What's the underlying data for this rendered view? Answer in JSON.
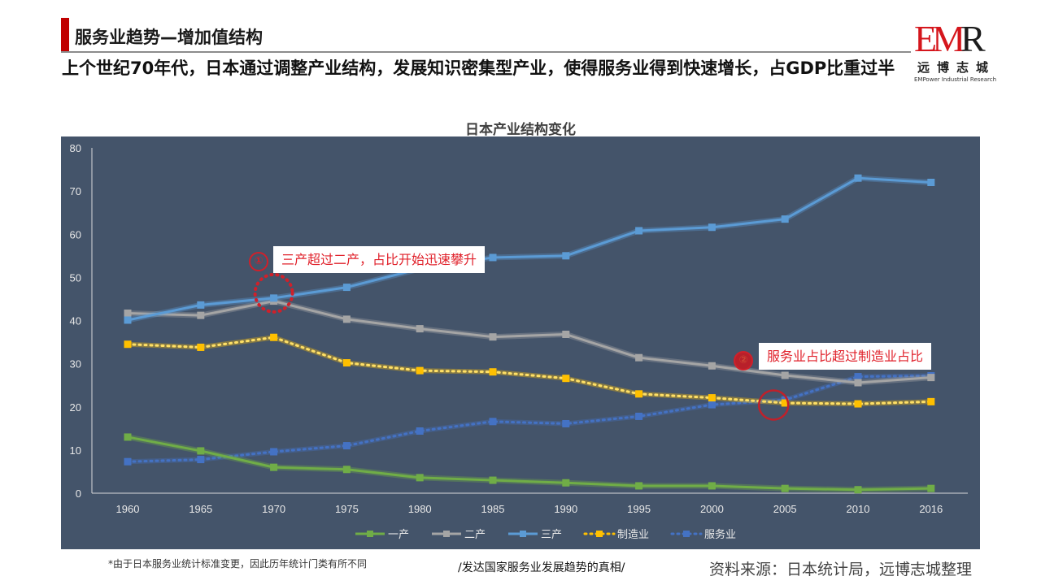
{
  "header": {
    "title": "服务业趋势—增加值结构",
    "subtitle": "上个世纪70年代，日本通过调整产业结构，发展知识密集型产业，使得服务业得到快速增长，占GDP比重过半"
  },
  "logo": {
    "mark_red": "EM",
    "mark_dark": "R",
    "cn": "远博志城",
    "en": "EMPower Industrial Research"
  },
  "annotations": [
    {
      "badge": "①",
      "text": "三产超过二产，占比开始迅速攀升",
      "year": 1970,
      "style": "dotted-circle"
    },
    {
      "badge": "②",
      "text": "服务业占比超过制造业占比",
      "year": 2005,
      "style": "solid-circle"
    }
  ],
  "footer": {
    "note": "*由于日本服务业统计标准变更，因此历年统计门类有所不同",
    "series_title": "/发达国家服务业发展趋势的真相/",
    "source": "资料来源：日本统计局，远博志城整理"
  },
  "colors": {
    "panel_bg": "#44546a",
    "accent_red": "#c00000"
  },
  "chart_data": {
    "type": "line",
    "title": "日本产业结构变化",
    "xlabel": "",
    "ylabel": "",
    "ylim": [
      0,
      80
    ],
    "yticks": [
      0,
      10,
      20,
      30,
      40,
      50,
      60,
      70,
      80
    ],
    "grid": false,
    "legend": "bottom",
    "categories": [
      "1960",
      "1965",
      "1970",
      "1975",
      "1980",
      "1985",
      "1990",
      "1995",
      "2000",
      "2005",
      "2010",
      "2016"
    ],
    "series": [
      {
        "name": "一产",
        "color": "#70ad47",
        "dash": "solid",
        "values": [
          13.0,
          9.8,
          6.0,
          5.5,
          3.6,
          3.0,
          2.4,
          1.7,
          1.7,
          1.1,
          0.8,
          1.1
        ]
      },
      {
        "name": "二产",
        "color": "#a5a5a5",
        "dash": "solid",
        "values": [
          41.7,
          41.2,
          44.5,
          40.3,
          38.1,
          36.2,
          36.8,
          31.4,
          29.5,
          27.3,
          25.6,
          26.8
        ]
      },
      {
        "name": "三产",
        "color": "#5b9bd5",
        "dash": "solid",
        "values": [
          40.1,
          43.6,
          45.2,
          47.7,
          52.0,
          54.6,
          55.0,
          60.8,
          61.6,
          63.5,
          73.0,
          72.0
        ]
      },
      {
        "name": "制造业",
        "color": "#ffc000",
        "dash": "dot",
        "values": [
          34.5,
          33.8,
          36.1,
          30.2,
          28.4,
          28.1,
          26.6,
          23.0,
          22.1,
          20.9,
          20.7,
          21.2
        ]
      },
      {
        "name": "服务业",
        "color": "#4472c4",
        "dash": "dot",
        "values": [
          7.3,
          7.8,
          9.6,
          11.0,
          14.4,
          16.6,
          16.1,
          17.8,
          20.5,
          21.6,
          27.0,
          27.2
        ]
      }
    ]
  }
}
